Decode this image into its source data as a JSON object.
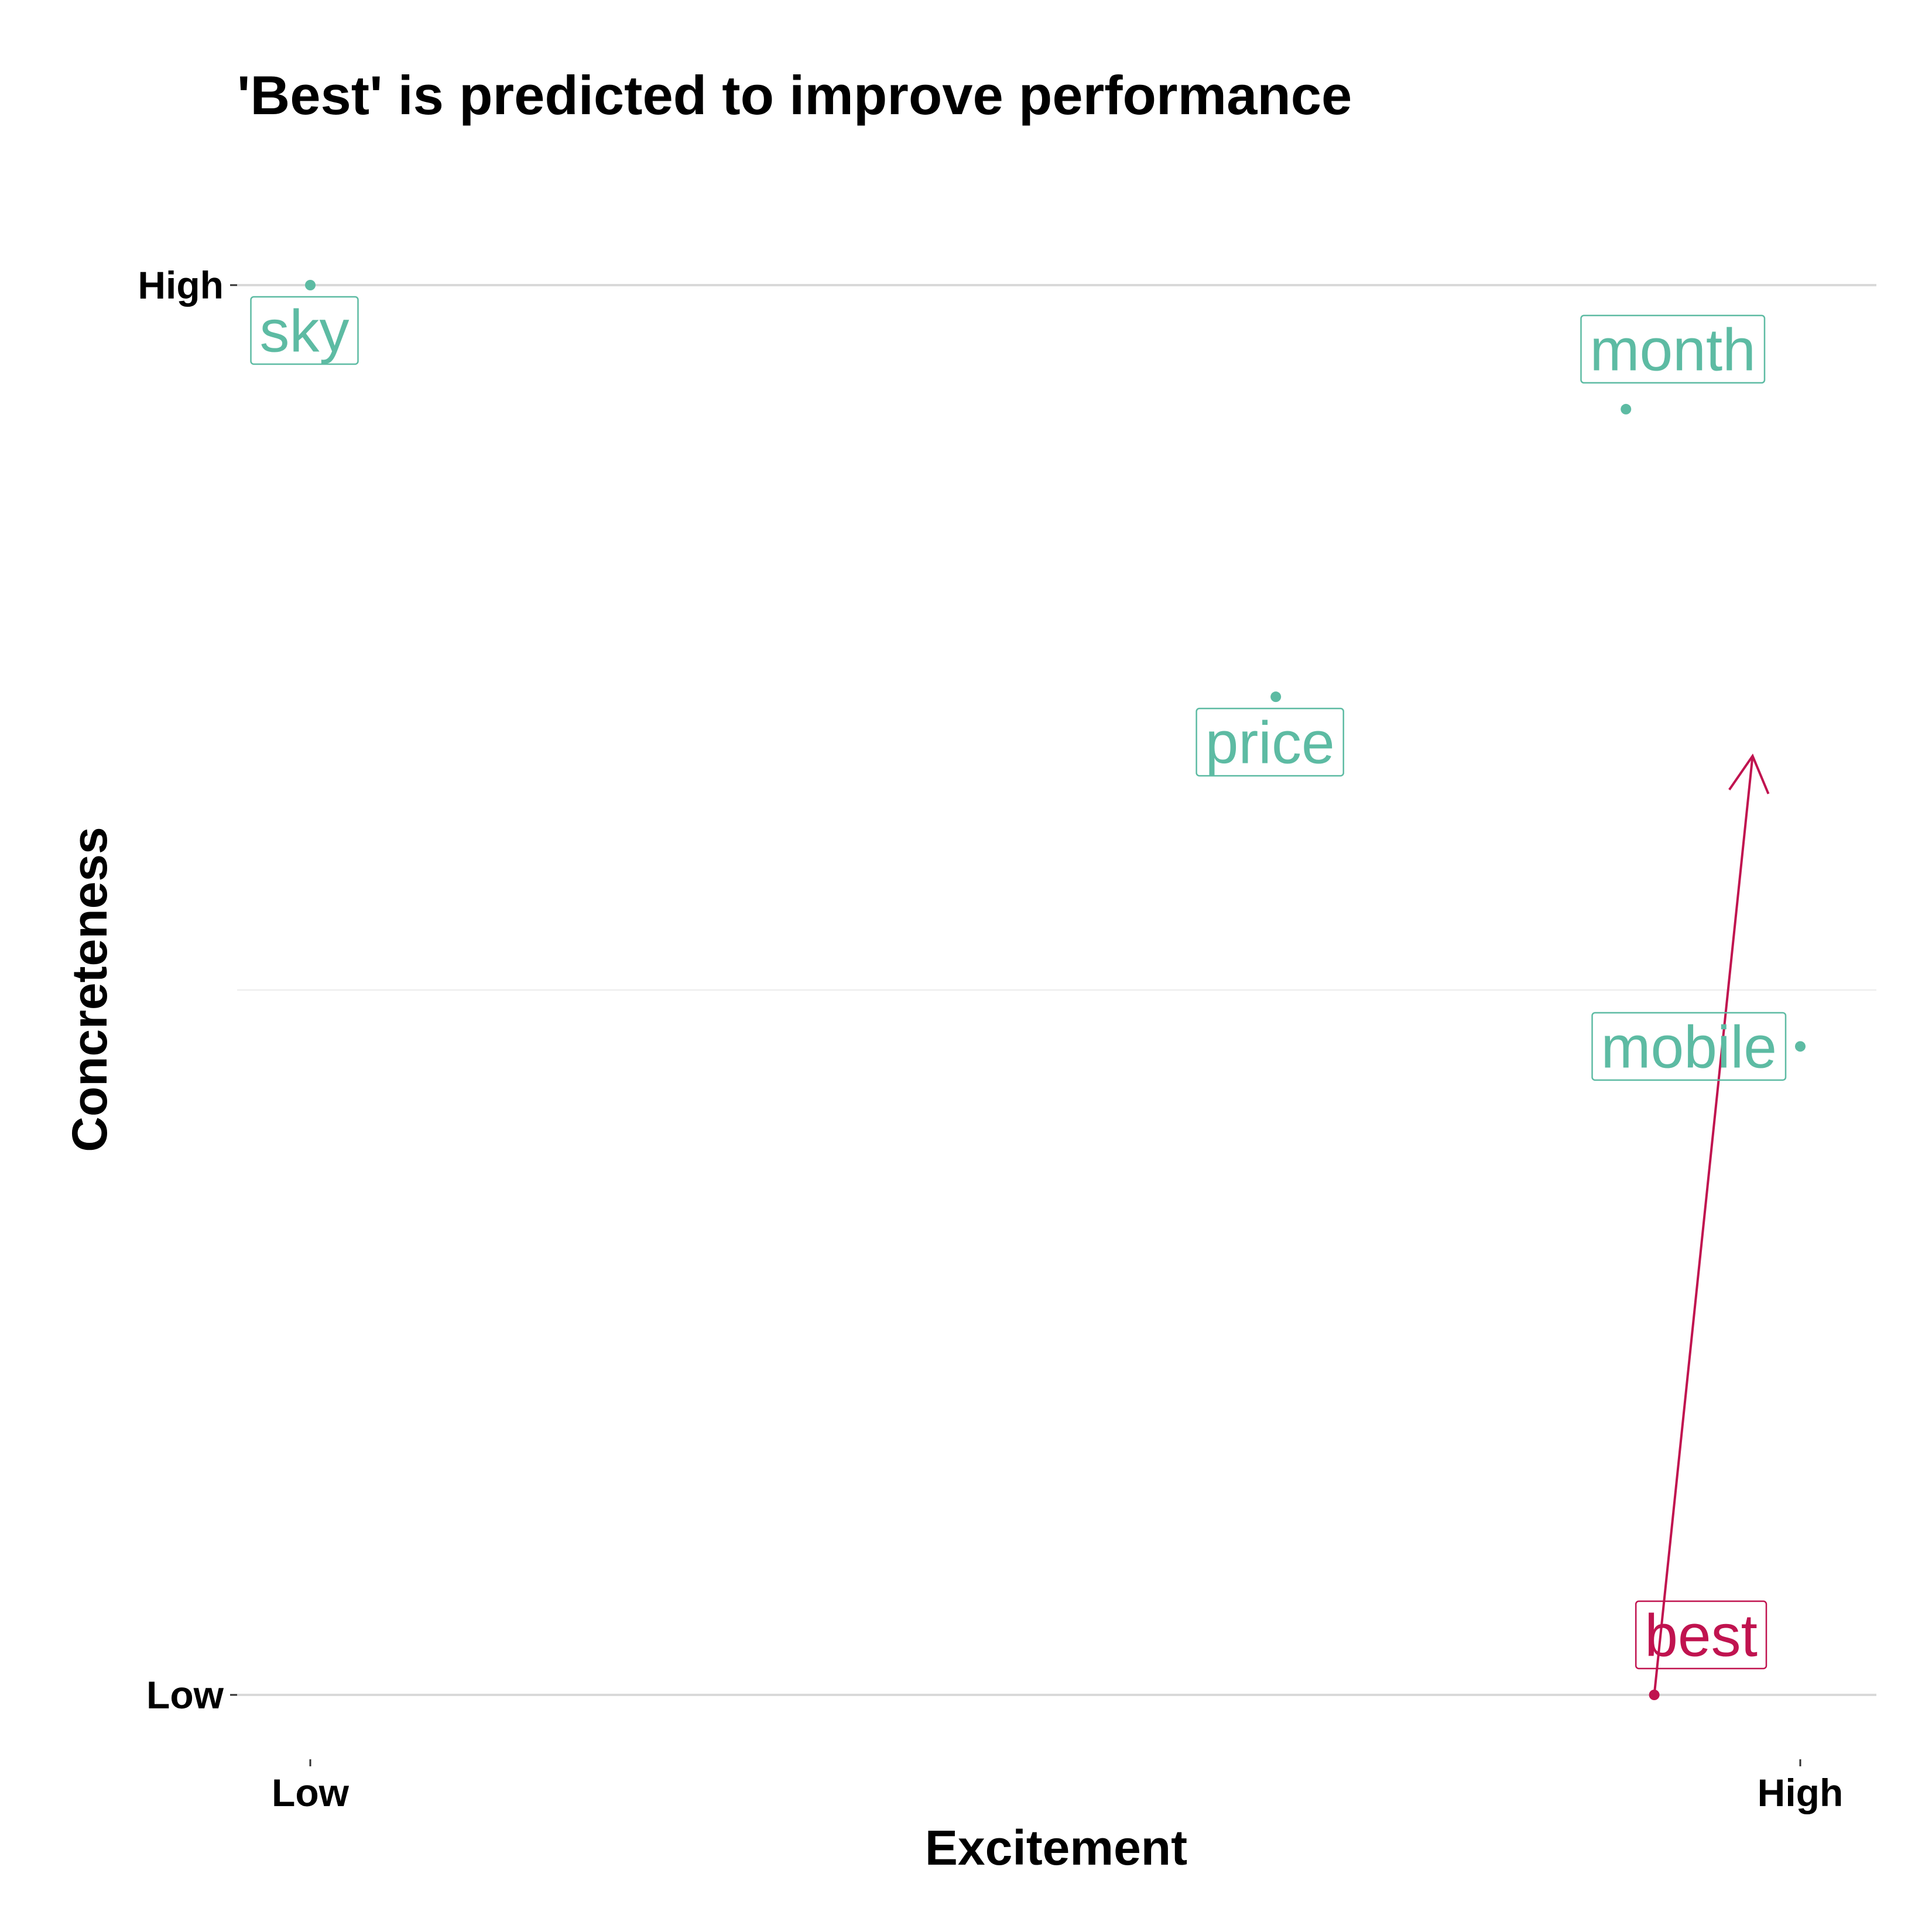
{
  "chart_data": {
    "type": "scatter",
    "title": "'Best' is predicted to improve performance",
    "xlabel": "Excitement",
    "ylabel": "Concreteness",
    "xlim": [
      0,
      1
    ],
    "ylim": [
      0,
      1
    ],
    "x_ticks": [
      {
        "value": 0,
        "label": "Low"
      },
      {
        "value": 1,
        "label": "High"
      }
    ],
    "y_ticks": [
      {
        "value": 0,
        "label": "Low"
      },
      {
        "value": 1,
        "label": "High"
      }
    ],
    "grid": true,
    "points": [
      {
        "label": "sky",
        "x": 0.0,
        "y": 1.0,
        "color": "#5dbba3",
        "label_side": "below"
      },
      {
        "label": "month",
        "x": 0.883,
        "y": 0.912,
        "color": "#5dbba3",
        "label_side": "above"
      },
      {
        "label": "price",
        "x": 0.648,
        "y": 0.708,
        "color": "#5dbba3",
        "label_side": "below"
      },
      {
        "label": "mobile",
        "x": 1.0,
        "y": 0.46,
        "color": "#5dbba3",
        "label_side": "left"
      },
      {
        "label": "best",
        "x": 0.902,
        "y": 0.0,
        "color": "#c0134f",
        "label_side": "above"
      }
    ],
    "arrow": {
      "from": "best",
      "to": {
        "x": 0.968,
        "y": 0.666
      },
      "color": "#c0134f"
    }
  }
}
